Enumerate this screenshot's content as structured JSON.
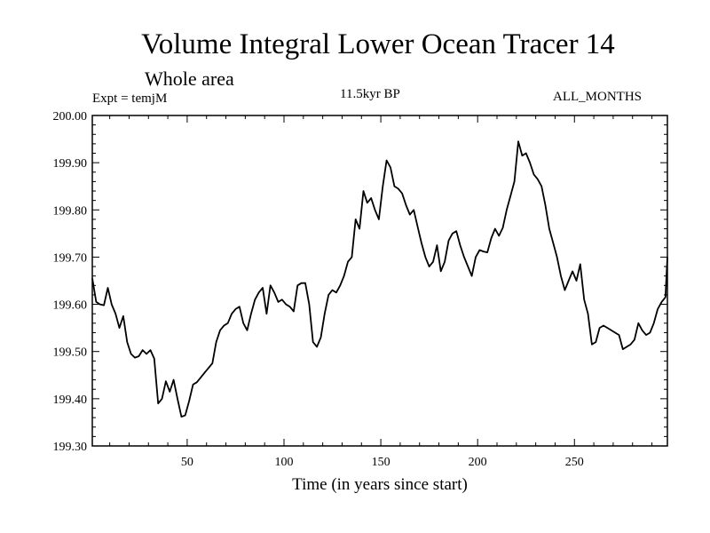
{
  "chart_data": {
    "type": "line",
    "title": "Volume Integral Lower Ocean Tracer 14",
    "subtitle": "Whole area",
    "experiment": "Expt = temjM",
    "period": "11.5kyr BP",
    "months": "ALL_MONTHS",
    "xlabel": "Time (in years since start)",
    "ylabel": "",
    "xlim": [
      1,
      298
    ],
    "ylim": [
      199.3,
      200.0
    ],
    "xticks": [
      50,
      100,
      150,
      200,
      250
    ],
    "yticks": [
      "199.30",
      "199.40",
      "199.50",
      "199.60",
      "199.70",
      "199.80",
      "199.90",
      "200.00"
    ],
    "series": [
      {
        "name": "Volume Integral Lower Ocean Tracer 14",
        "color": "#000000",
        "x": [
          1,
          3,
          5,
          7,
          9,
          11,
          13,
          15,
          17,
          19,
          21,
          23,
          25,
          27,
          29,
          31,
          33,
          35,
          37,
          39,
          41,
          43,
          45,
          47,
          49,
          51,
          53,
          55,
          57,
          59,
          61,
          63,
          65,
          67,
          69,
          71,
          73,
          75,
          77,
          79,
          81,
          83,
          85,
          87,
          89,
          91,
          93,
          95,
          97,
          99,
          101,
          103,
          105,
          107,
          109,
          111,
          113,
          115,
          117,
          119,
          121,
          123,
          125,
          127,
          129,
          131,
          133,
          135,
          137,
          139,
          141,
          143,
          145,
          147,
          149,
          151,
          153,
          155,
          157,
          159,
          161,
          163,
          165,
          167,
          169,
          171,
          173,
          175,
          177,
          179,
          181,
          183,
          185,
          187,
          189,
          191,
          193,
          195,
          197,
          199,
          201,
          203,
          205,
          207,
          209,
          211,
          213,
          215,
          217,
          219,
          221,
          223,
          225,
          227,
          229,
          231,
          233,
          235,
          237,
          239,
          241,
          243,
          245,
          247,
          249,
          251,
          253,
          255,
          257,
          259,
          261,
          263,
          265,
          267,
          269,
          271,
          273,
          275,
          277,
          279,
          281,
          283,
          285,
          287,
          289,
          291,
          293,
          295,
          297,
          298
        ],
        "y": [
          199.655,
          199.605,
          199.6,
          199.598,
          199.635,
          199.6,
          199.58,
          199.55,
          199.575,
          199.52,
          199.495,
          199.487,
          199.49,
          199.503,
          199.495,
          199.503,
          199.485,
          199.39,
          199.4,
          199.437,
          199.415,
          199.44,
          199.4,
          199.362,
          199.365,
          199.395,
          199.43,
          199.435,
          199.445,
          199.455,
          199.465,
          199.475,
          199.52,
          199.545,
          199.555,
          199.56,
          199.58,
          199.59,
          199.595,
          199.56,
          199.545,
          199.58,
          199.61,
          199.625,
          199.635,
          199.58,
          199.64,
          199.625,
          199.605,
          199.61,
          199.6,
          199.595,
          199.585,
          199.64,
          199.645,
          199.645,
          199.6,
          199.52,
          199.51,
          199.53,
          199.58,
          199.62,
          199.63,
          199.625,
          199.64,
          199.66,
          199.69,
          199.7,
          199.78,
          199.76,
          199.84,
          199.815,
          199.825,
          199.8,
          199.78,
          199.85,
          199.905,
          199.89,
          199.85,
          199.845,
          199.835,
          199.81,
          199.79,
          199.8,
          199.765,
          199.73,
          199.7,
          199.68,
          199.69,
          199.725,
          199.67,
          199.69,
          199.735,
          199.75,
          199.755,
          199.725,
          199.7,
          199.68,
          199.66,
          199.7,
          199.715,
          199.712,
          199.71,
          199.74,
          199.76,
          199.745,
          199.762,
          199.8,
          199.83,
          199.86,
          199.945,
          199.915,
          199.92,
          199.9,
          199.875,
          199.865,
          199.85,
          199.81,
          199.76,
          199.73,
          199.7,
          199.66,
          199.63,
          199.65,
          199.67,
          199.65,
          199.685,
          199.61,
          199.58,
          199.515,
          199.52,
          199.55,
          199.555,
          199.55,
          199.545,
          199.54,
          199.535,
          199.505,
          199.51,
          199.515,
          199.525,
          199.56,
          199.545,
          199.535,
          199.54,
          199.56,
          199.59,
          199.605,
          199.615,
          199.7
        ]
      }
    ]
  }
}
